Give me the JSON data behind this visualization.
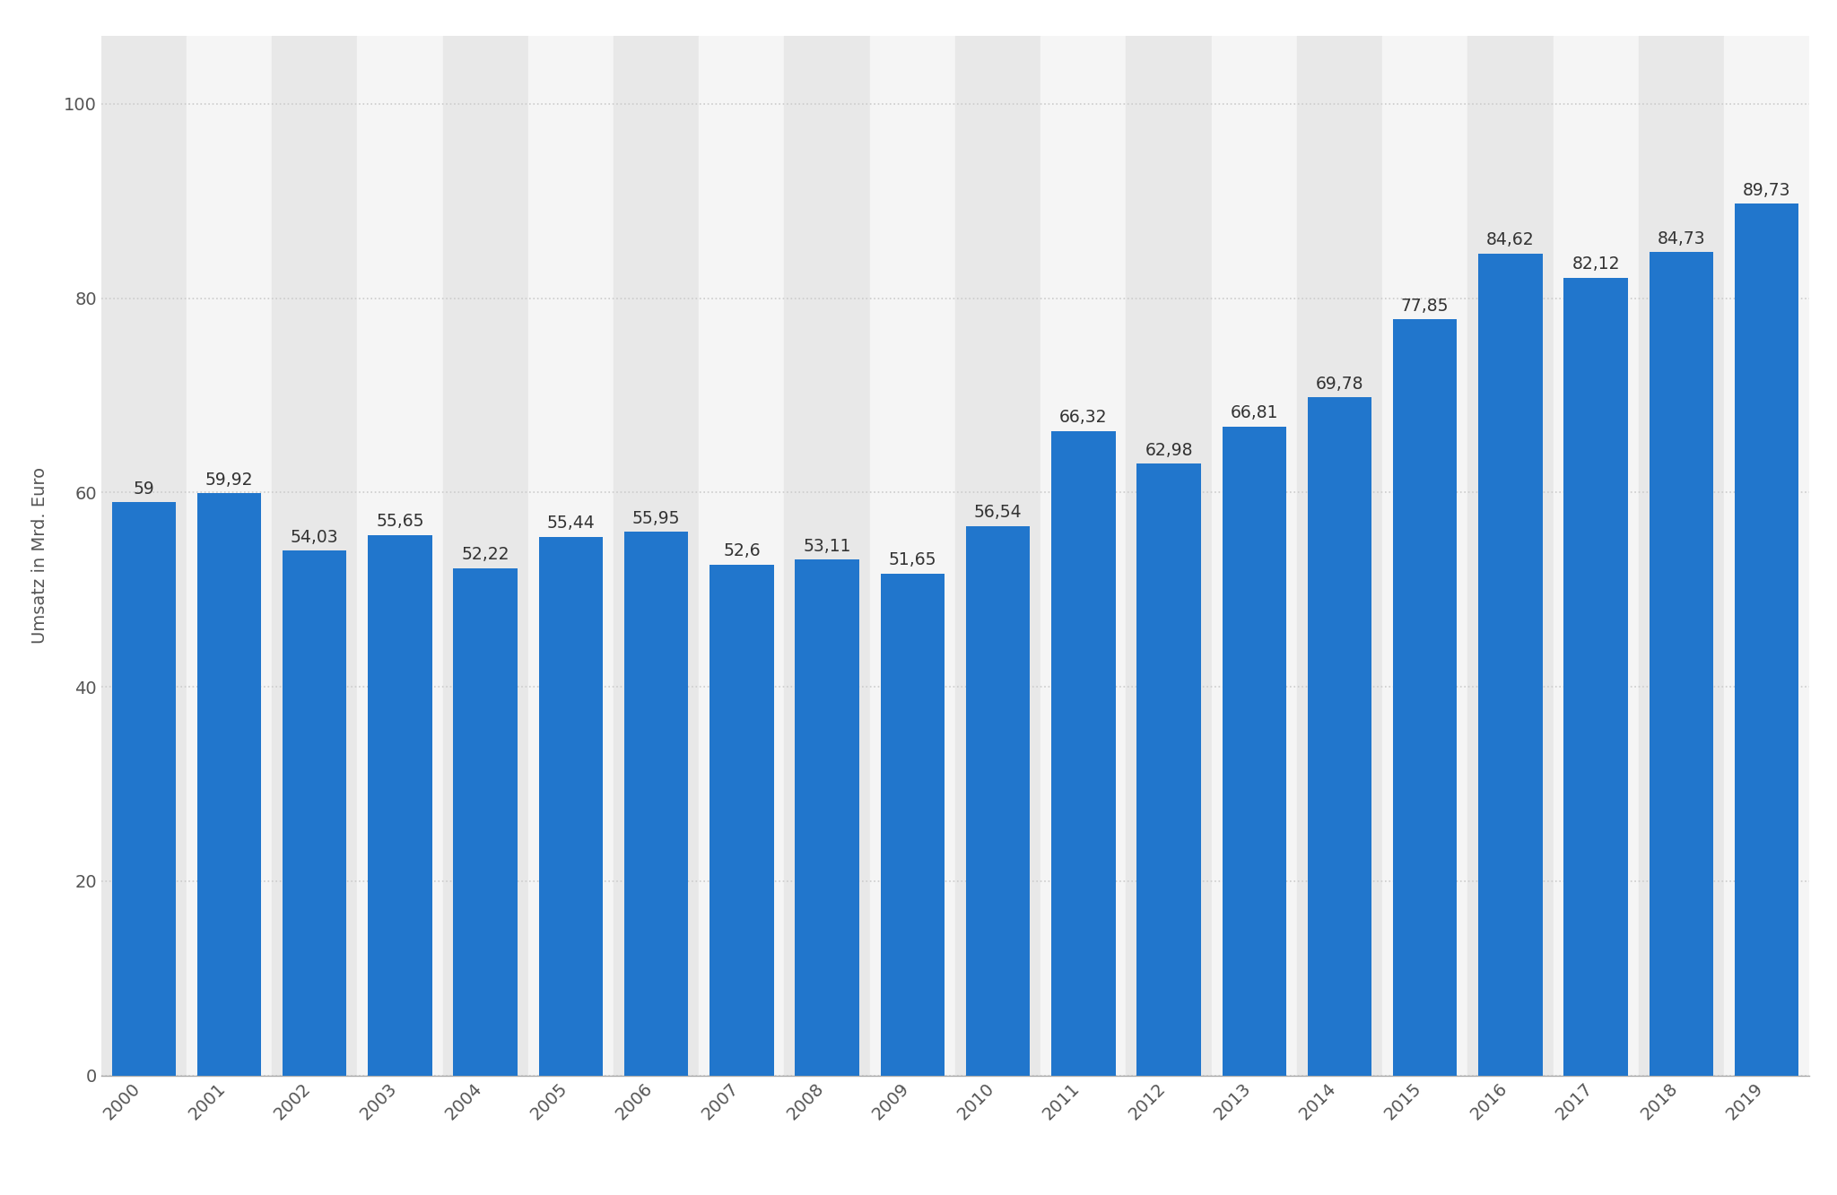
{
  "years": [
    "2000",
    "2001",
    "2002",
    "2003",
    "2004",
    "2005",
    "2006",
    "2007",
    "2008",
    "2009",
    "2010",
    "2011",
    "2012",
    "2013",
    "2014",
    "2015",
    "2016",
    "2017",
    "2018",
    "2019"
  ],
  "values": [
    59,
    59.92,
    54.03,
    55.65,
    52.22,
    55.44,
    55.95,
    52.6,
    53.11,
    51.65,
    56.54,
    66.32,
    62.98,
    66.81,
    69.78,
    77.85,
    84.62,
    82.12,
    84.73,
    89.73
  ],
  "labels": [
    "59",
    "59,92",
    "54,03",
    "55,65",
    "52,22",
    "55,44",
    "55,95",
    "52,6",
    "53,11",
    "51,65",
    "56,54",
    "66,32",
    "62,98",
    "66,81",
    "69,78",
    "77,85",
    "84,62",
    "82,12",
    "84,73",
    "89,73"
  ],
  "bar_color": "#2176CC",
  "bg_color": "#ffffff",
  "plot_bg_color": "#f5f5f5",
  "stripe_color": "#e8e8e8",
  "ylabel": "Umsatz in Mrd. Euro",
  "ylim": [
    0,
    107
  ],
  "yticks": [
    0,
    20,
    40,
    60,
    80,
    100
  ],
  "grid_color": "#cccccc",
  "tick_fontsize": 14,
  "ylabel_fontsize": 14,
  "bar_label_fontsize": 13.5,
  "bar_label_color": "#333333"
}
